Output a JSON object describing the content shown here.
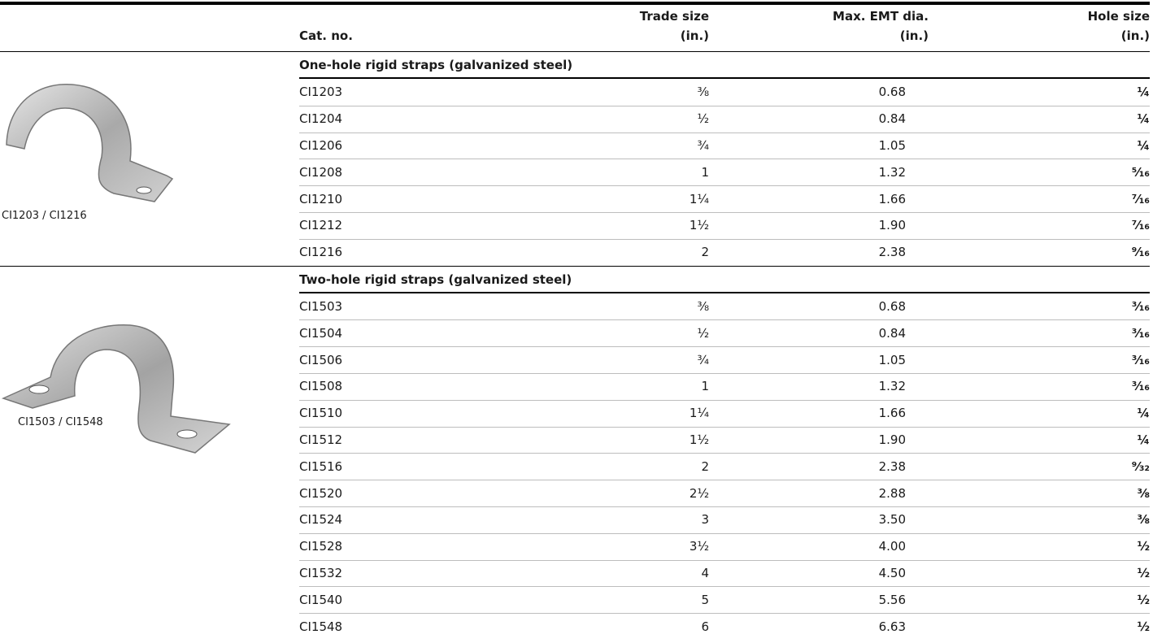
{
  "header": {
    "cat_no": "Cat. no.",
    "trade_size": [
      "Trade size",
      "(in.)"
    ],
    "max_emt": [
      "Max. EMT dia.",
      "(in.)"
    ],
    "hole_size": [
      "Hole size",
      "(in.)"
    ]
  },
  "sections": [
    {
      "title": "One-hole rigid straps (galvanized steel)",
      "caption": "CI1203 / CI1216",
      "rows": [
        [
          "CI1203",
          "⅜",
          "0.68",
          "¼"
        ],
        [
          "CI1204",
          "½",
          "0.84",
          "¼"
        ],
        [
          "CI1206",
          "¾",
          "1.05",
          "¼"
        ],
        [
          "CI1208",
          "1",
          "1.32",
          "⁵⁄₁₆"
        ],
        [
          "CI1210",
          "1¼",
          "1.66",
          "⁷⁄₁₆"
        ],
        [
          "CI1212",
          "1½",
          "1.90",
          "⁷⁄₁₆"
        ],
        [
          "CI1216",
          "2",
          "2.38",
          "⁹⁄₁₆"
        ]
      ]
    },
    {
      "title": "Two-hole rigid straps (galvanized steel)",
      "caption": "CI1503 / CI1548",
      "rows": [
        [
          "CI1503",
          "⅜",
          "0.68",
          "³⁄₁₆"
        ],
        [
          "CI1504",
          "½",
          "0.84",
          "³⁄₁₆"
        ],
        [
          "CI1506",
          "¾",
          "1.05",
          "³⁄₁₆"
        ],
        [
          "CI1508",
          "1",
          "1.32",
          "³⁄₁₆"
        ],
        [
          "CI1510",
          "1¼",
          "1.66",
          "¼"
        ],
        [
          "CI1512",
          "1½",
          "1.90",
          "¼"
        ],
        [
          "CI1516",
          "2",
          "2.38",
          "⁹⁄₃₂"
        ],
        [
          "CI1520",
          "2½",
          "2.88",
          "⅜"
        ],
        [
          "CI1524",
          "3",
          "3.50",
          "⅜"
        ],
        [
          "CI1528",
          "3½",
          "4.00",
          "½"
        ],
        [
          "CI1532",
          "4",
          "4.50",
          "½"
        ],
        [
          "CI1540",
          "5",
          "5.56",
          "½"
        ],
        [
          "CI1548",
          "6",
          "6.63",
          "½"
        ]
      ]
    }
  ]
}
